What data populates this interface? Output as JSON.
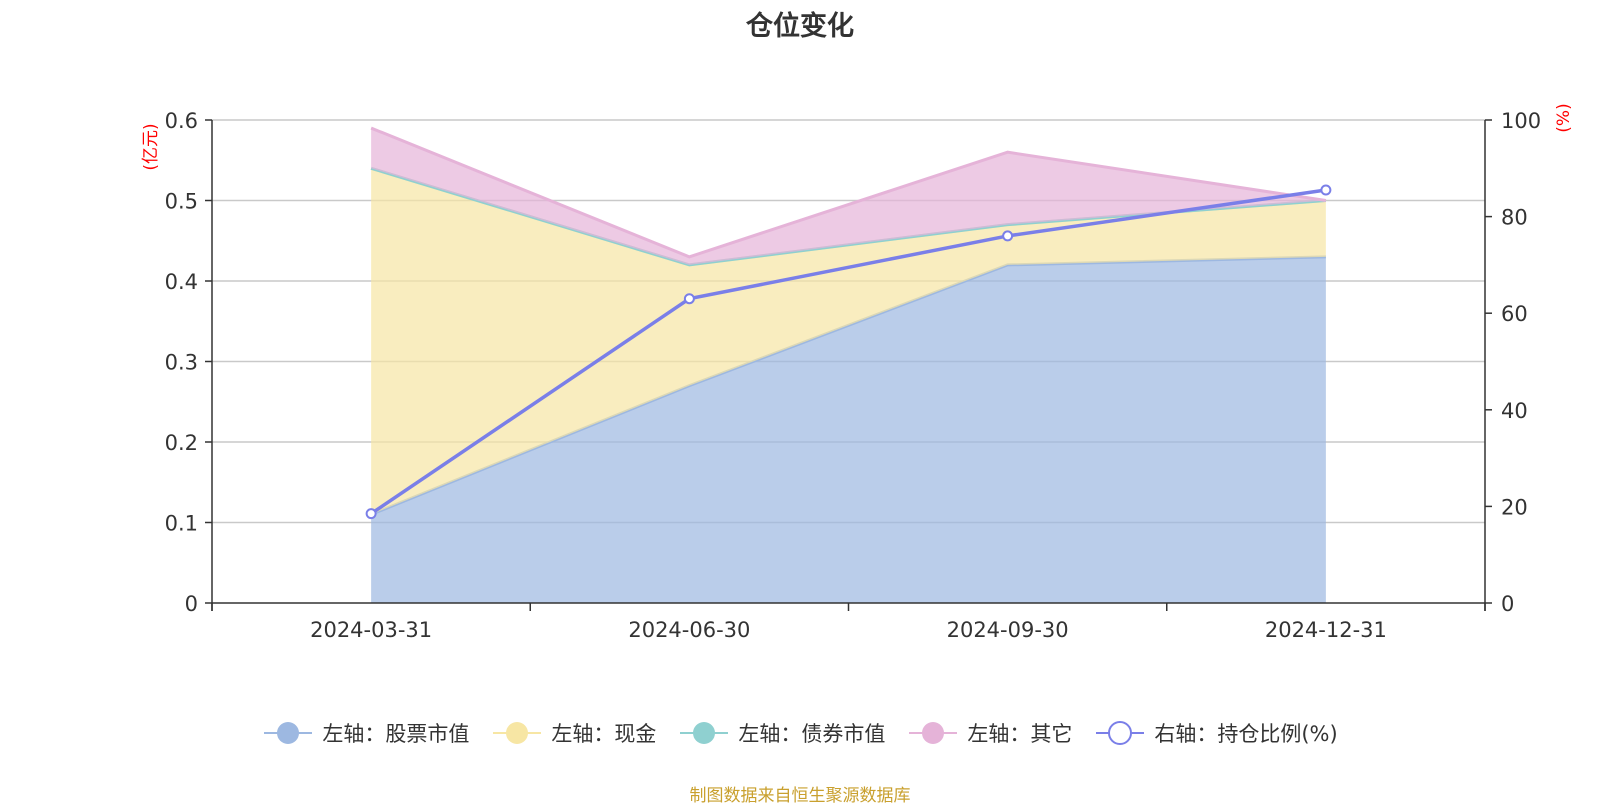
{
  "chart_data": {
    "type": "area",
    "title": "仓位变化",
    "categories": [
      "2024-03-31",
      "2024-06-30",
      "2024-09-30",
      "2024-12-31"
    ],
    "left_axis": {
      "unit": "(亿元)",
      "ylim": [
        0,
        0.6
      ],
      "ticks": [
        "0",
        "0.1",
        "0.2",
        "0.3",
        "0.4",
        "0.5",
        "0.6"
      ]
    },
    "right_axis": {
      "unit": "(%)",
      "ylim": [
        0,
        100
      ],
      "ticks": [
        "0",
        "20",
        "40",
        "60",
        "80",
        "100"
      ]
    },
    "series": [
      {
        "name": "左轴：股票市值",
        "axis": "left",
        "stacked": true,
        "values": [
          0.11,
          0.27,
          0.42,
          0.43
        ],
        "color": "#9db8e1"
      },
      {
        "name": "左轴：现金",
        "axis": "left",
        "stacked": true,
        "values": [
          0.43,
          0.15,
          0.05,
          0.07
        ],
        "color": "#f7e6a4"
      },
      {
        "name": "左轴：债券市值",
        "axis": "left",
        "stacked": true,
        "values": [
          0,
          0,
          0,
          0
        ],
        "color": "#8fd0d0"
      },
      {
        "name": "左轴：其它",
        "axis": "left",
        "stacked": true,
        "values": [
          0.05,
          0.01,
          0.09,
          0.0
        ],
        "color": "#e5b3d8"
      },
      {
        "name": "右轴：持仓比例(%)",
        "axis": "right",
        "type": "line",
        "values": [
          18.5,
          63,
          76,
          85.5
        ],
        "color": "#7a7fe8"
      }
    ]
  },
  "source_note": "制图数据来自恒生聚源数据库"
}
